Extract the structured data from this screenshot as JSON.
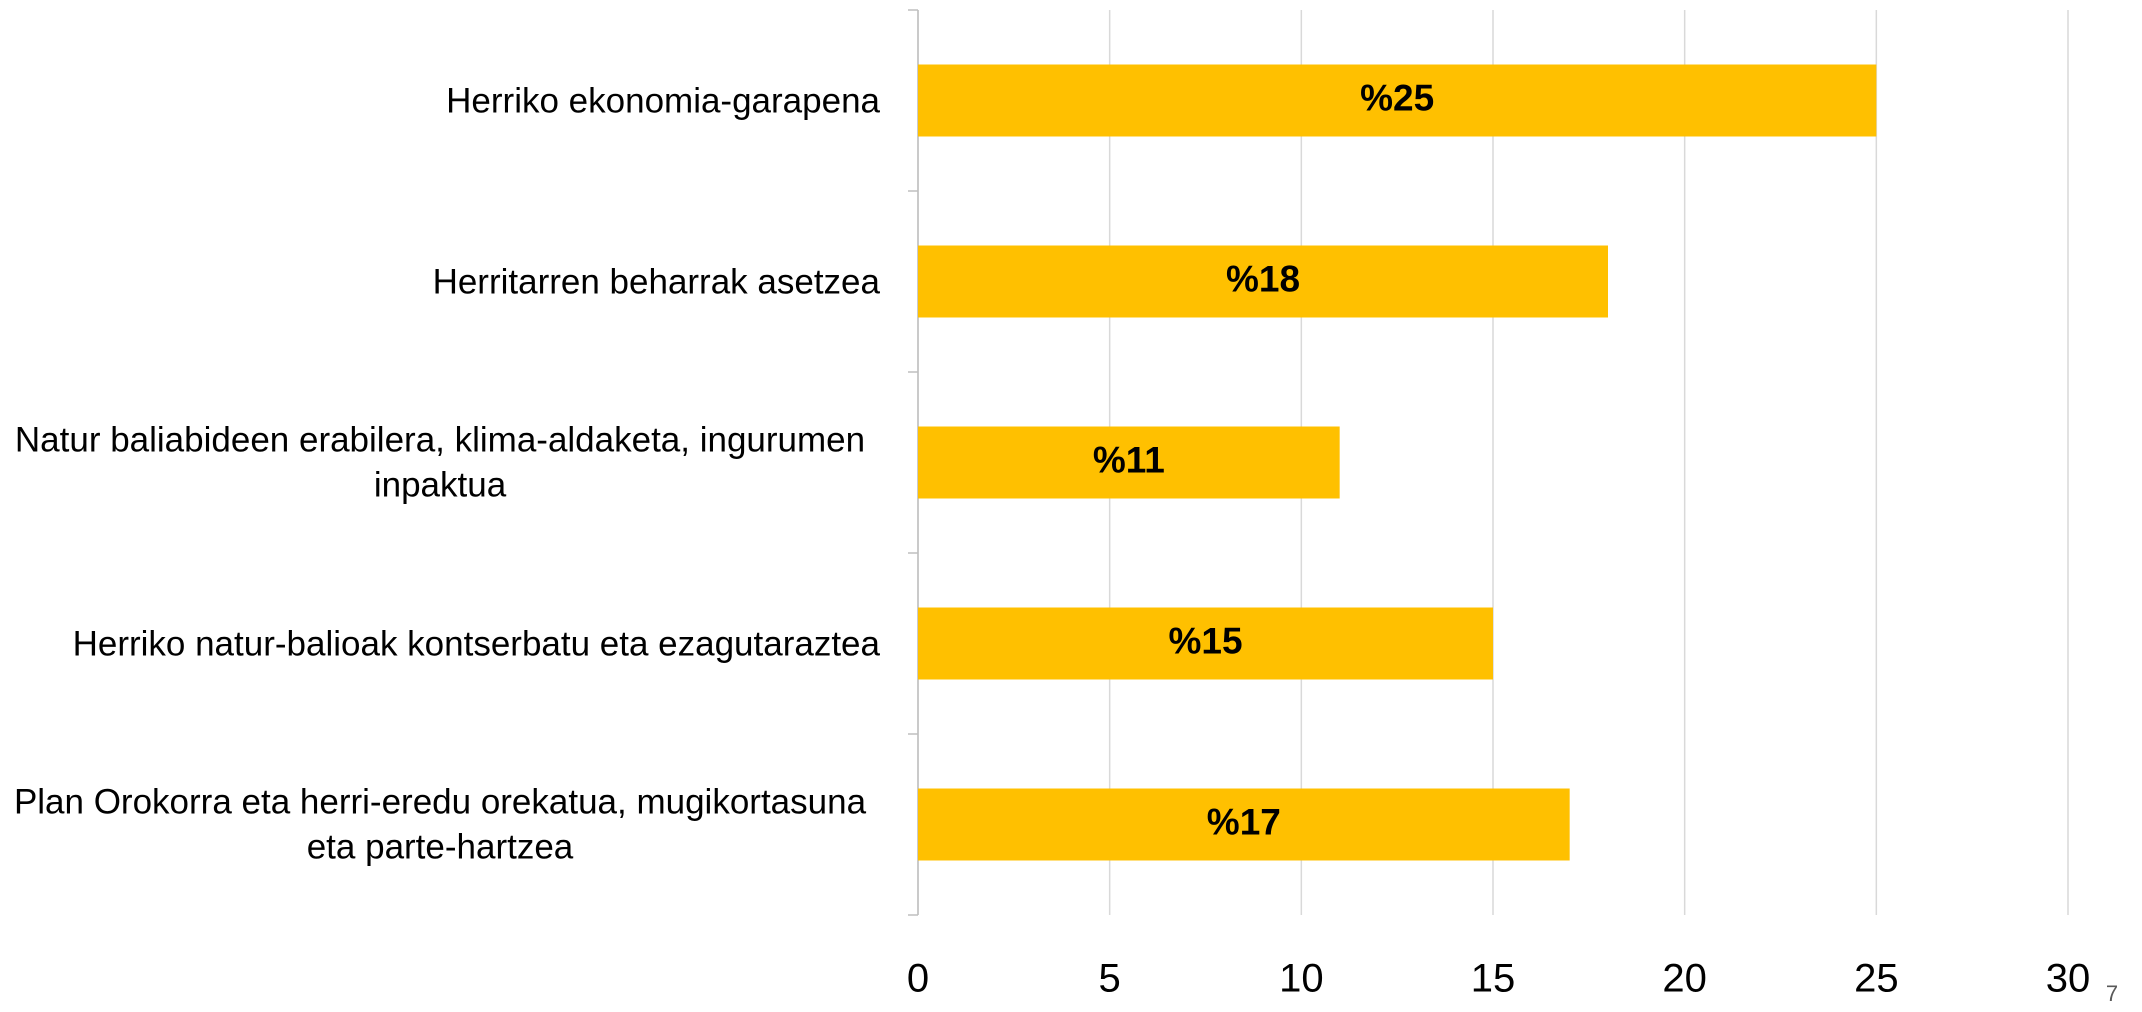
{
  "chart_data": {
    "type": "barh",
    "categories": [
      "Herriko ekonomia-garapena",
      "Herritarren beharrak asetzea",
      "Natur baliabideen erabilera, klima-aldaketa, ingurumen inpaktua",
      "Herriko natur-balioak kontserbatu eta ezagutaraztea",
      "Plan Orokorra eta herri-eredu orekatua, mugikortasuna eta parte-hartzea"
    ],
    "values": [
      25,
      18,
      11,
      15,
      17
    ],
    "value_labels": [
      "%25",
      "%18",
      "%11",
      "%15",
      "%17"
    ],
    "color": "#ffc000",
    "xlim": [
      0,
      30
    ],
    "xticks": [
      0,
      5,
      10,
      15,
      20,
      25,
      30
    ],
    "grid": true,
    "page_number": "7"
  }
}
